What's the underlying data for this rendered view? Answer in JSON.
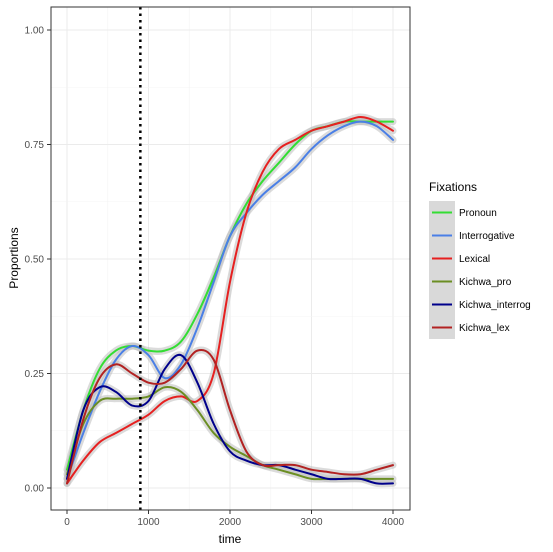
{
  "chart_data": {
    "type": "line",
    "xlabel": "time",
    "ylabel": "Proportions",
    "xlim": [
      0,
      4000
    ],
    "ylim": [
      0,
      1
    ],
    "x_ticks": [
      0,
      1000,
      2000,
      3000,
      4000
    ],
    "x_tick_labels": [
      "0",
      "1000",
      "2000",
      "3000",
      "4000"
    ],
    "y_ticks": [
      0,
      0.25,
      0.5,
      0.75,
      1
    ],
    "y_tick_labels": [
      "0.00",
      "0.25",
      "0.50",
      "0.75",
      "1.00"
    ],
    "grid": true,
    "vline_x": 900,
    "legend": {
      "title": "Fixations",
      "placement": "right"
    },
    "series": [
      {
        "name": "Pronoun",
        "color": "#33dd33",
        "x": [
          0,
          200,
          400,
          600,
          800,
          1000,
          1200,
          1400,
          1600,
          1800,
          2000,
          2200,
          2400,
          2600,
          2800,
          3000,
          3200,
          3400,
          3600,
          3800,
          4000
        ],
        "y": [
          0.04,
          0.17,
          0.26,
          0.3,
          0.31,
          0.3,
          0.3,
          0.32,
          0.38,
          0.46,
          0.55,
          0.62,
          0.67,
          0.71,
          0.75,
          0.78,
          0.79,
          0.8,
          0.8,
          0.8,
          0.8
        ]
      },
      {
        "name": "Interrogative",
        "color": "#4a7fe6",
        "x": [
          0,
          200,
          400,
          600,
          800,
          1000,
          1200,
          1400,
          1600,
          1800,
          2000,
          2200,
          2400,
          2600,
          2800,
          3000,
          3200,
          3400,
          3600,
          3800,
          4000
        ],
        "y": [
          0.02,
          0.12,
          0.21,
          0.28,
          0.31,
          0.29,
          0.24,
          0.27,
          0.35,
          0.45,
          0.55,
          0.6,
          0.64,
          0.67,
          0.7,
          0.74,
          0.77,
          0.79,
          0.8,
          0.79,
          0.76
        ]
      },
      {
        "name": "Lexical",
        "color": "#e62020",
        "x": [
          0,
          200,
          400,
          600,
          800,
          1000,
          1200,
          1400,
          1600,
          1800,
          2000,
          2200,
          2400,
          2600,
          2800,
          3000,
          3200,
          3400,
          3600,
          3800,
          4000
        ],
        "y": [
          0.01,
          0.06,
          0.1,
          0.12,
          0.14,
          0.16,
          0.19,
          0.2,
          0.19,
          0.25,
          0.45,
          0.6,
          0.69,
          0.74,
          0.76,
          0.78,
          0.79,
          0.8,
          0.81,
          0.8,
          0.78
        ]
      },
      {
        "name": "Kichwa_pro",
        "color": "#6b8e23",
        "x": [
          0,
          200,
          400,
          600,
          800,
          1000,
          1200,
          1400,
          1600,
          1800,
          2000,
          2200,
          2400,
          2600,
          2800,
          3000,
          3200,
          3400,
          3600,
          3800,
          4000
        ],
        "y": [
          0.03,
          0.14,
          0.19,
          0.195,
          0.195,
          0.2,
          0.22,
          0.21,
          0.17,
          0.12,
          0.09,
          0.07,
          0.05,
          0.04,
          0.03,
          0.02,
          0.02,
          0.02,
          0.02,
          0.02,
          0.02
        ]
      },
      {
        "name": "Kichwa_interrog",
        "color": "#00008b",
        "x": [
          0,
          200,
          400,
          600,
          800,
          1000,
          1200,
          1400,
          1600,
          1800,
          2000,
          2200,
          2400,
          2600,
          2800,
          3000,
          3200,
          3400,
          3600,
          3800,
          4000
        ],
        "y": [
          0.02,
          0.17,
          0.22,
          0.21,
          0.18,
          0.19,
          0.26,
          0.29,
          0.23,
          0.14,
          0.08,
          0.06,
          0.05,
          0.05,
          0.04,
          0.03,
          0.02,
          0.02,
          0.02,
          0.01,
          0.01
        ]
      },
      {
        "name": "Kichwa_lex",
        "color": "#b22222",
        "x": [
          0,
          200,
          400,
          600,
          800,
          1000,
          1200,
          1400,
          1600,
          1800,
          2000,
          2200,
          2400,
          2600,
          2800,
          3000,
          3200,
          3400,
          3600,
          3800,
          4000
        ],
        "y": [
          0.01,
          0.15,
          0.24,
          0.27,
          0.25,
          0.23,
          0.23,
          0.26,
          0.3,
          0.28,
          0.17,
          0.08,
          0.05,
          0.05,
          0.05,
          0.04,
          0.035,
          0.03,
          0.03,
          0.04,
          0.05
        ]
      }
    ]
  }
}
